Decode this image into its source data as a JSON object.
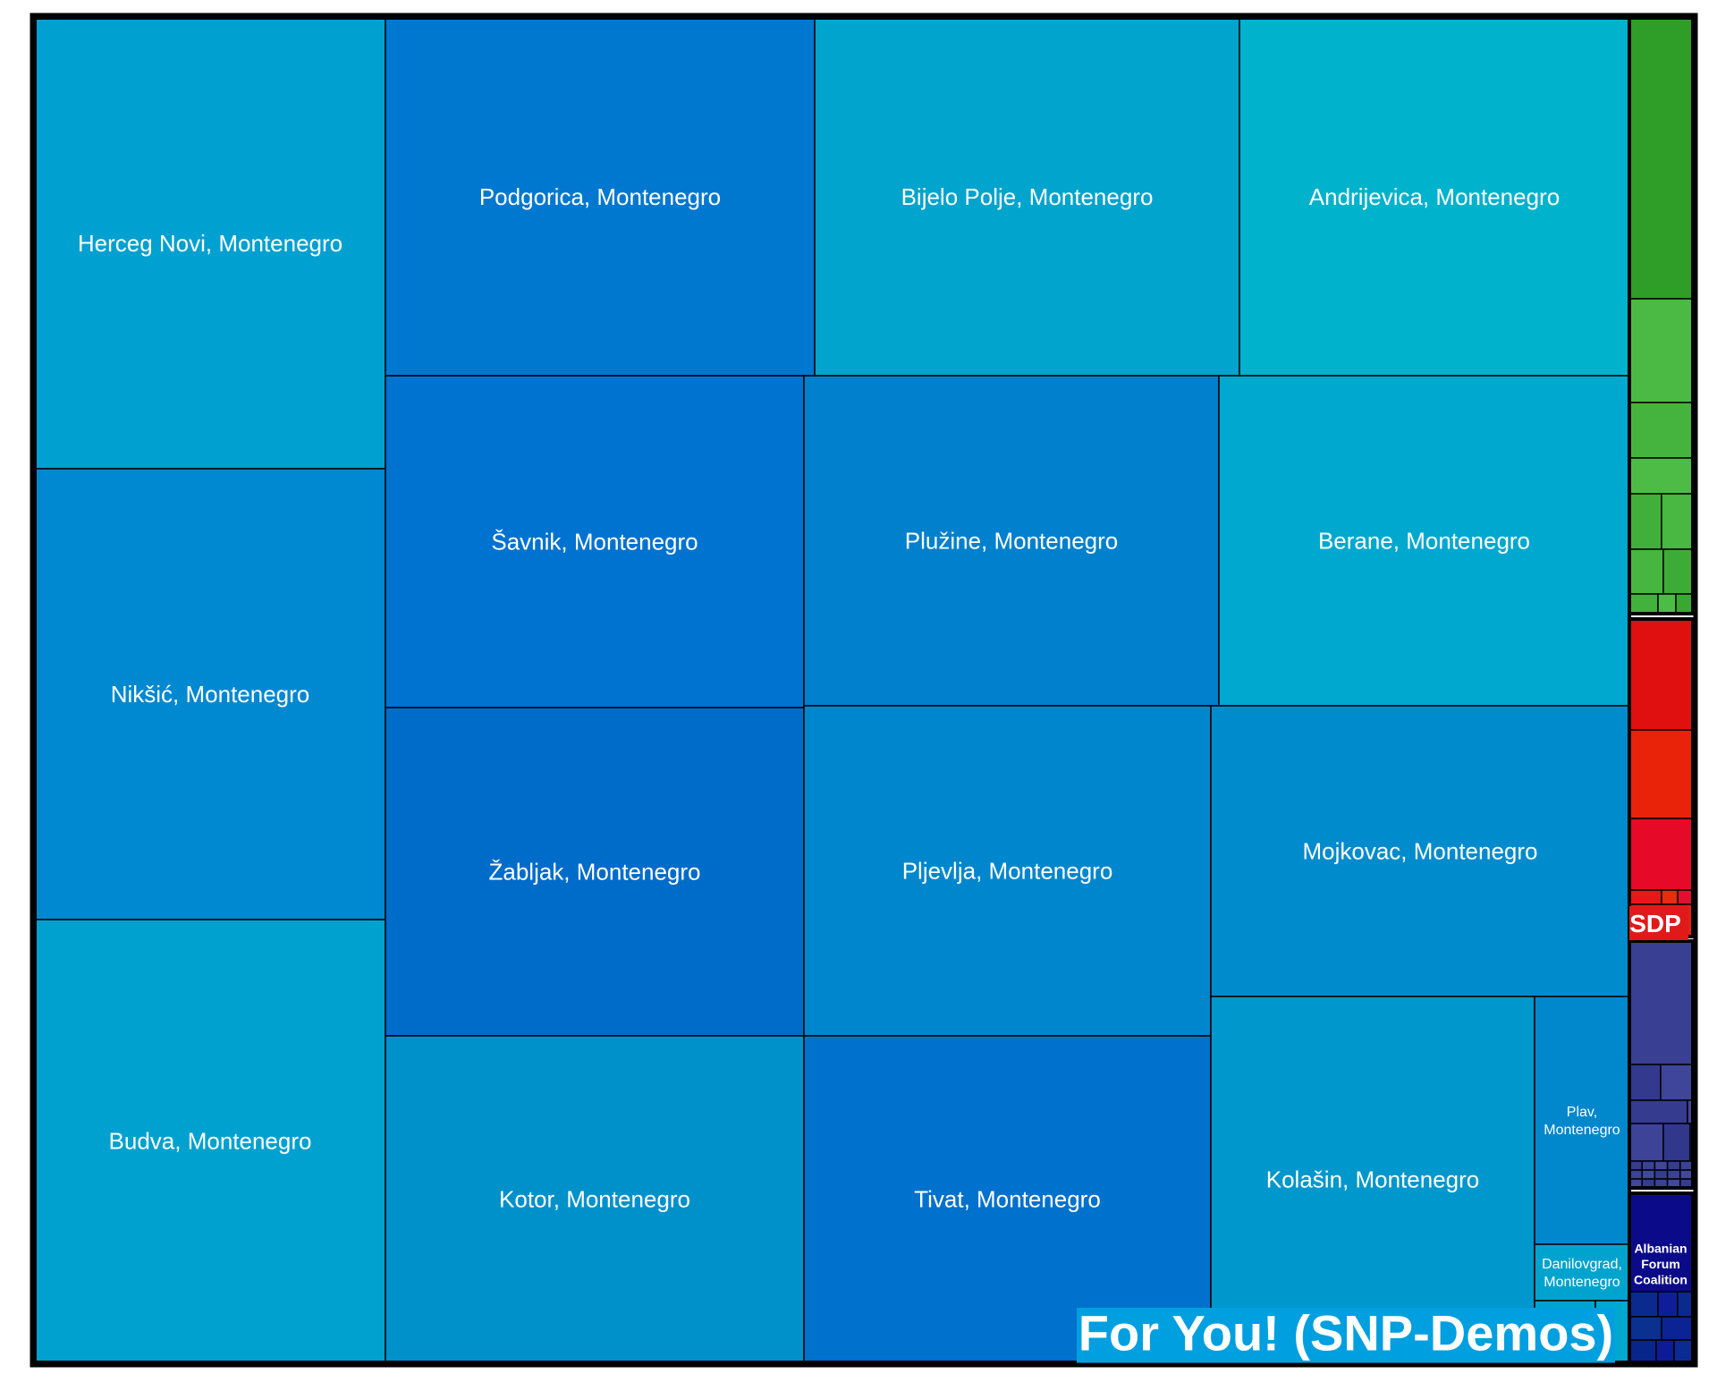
{
  "chart_data": {
    "type": "treemap",
    "title": "",
    "groups": [
      {
        "name": "For You! (SNP-Demos)",
        "color": "#00a2d6",
        "label_bg": "#009fe0",
        "label_color": "#ffffff",
        "items": [
          {
            "label": "Herceg Novi, Montenegro",
            "color": "#00a0d0"
          },
          {
            "label": "Nikšić, Montenegro",
            "color": "#0088d0"
          },
          {
            "label": "Budva, Montenegro",
            "color": "#00a1cf"
          },
          {
            "label": "Podgorica, Montenegro",
            "color": "#0078d0"
          },
          {
            "label": "Bijelo Polje, Montenegro",
            "color": "#00a4cd"
          },
          {
            "label": "Andrijevica, Montenegro",
            "color": "#00b2cc"
          },
          {
            "label": "Šavnik, Montenegro",
            "color": "#0072cf"
          },
          {
            "label": "Plužine, Montenegro",
            "color": "#0080cd"
          },
          {
            "label": "Berane, Montenegro",
            "color": "#00a8cf"
          },
          {
            "label": "Žabljak, Montenegro",
            "color": "#006cca"
          },
          {
            "label": "Pljevlja, Montenegro",
            "color": "#0086cc"
          },
          {
            "label": "Mojkovac, Montenegro",
            "color": "#008bcd"
          },
          {
            "label": "Kotor, Montenegro",
            "color": "#0091cb"
          },
          {
            "label": "Tivat, Montenegro",
            "color": "#0071cc"
          },
          {
            "label": "Kolašin, Montenegro",
            "color": "#0097cc"
          },
          {
            "label": "Plav, Montenegro",
            "color": "#0087cc"
          },
          {
            "label": "Danilovgrad, Montenegro",
            "color": "#00a3cd"
          }
        ]
      },
      {
        "name": "",
        "color": "#2f9e28",
        "items": []
      },
      {
        "name": "SDP",
        "color": "#e01010",
        "label_bg": "#e01a1a",
        "label_color": "#ffffff",
        "items": []
      },
      {
        "name": "",
        "color": "#393f92",
        "items": []
      },
      {
        "name": "Albanian Forum Coalition",
        "color": "#0b0b8a",
        "label_color": "#ffffff",
        "items": []
      }
    ]
  }
}
